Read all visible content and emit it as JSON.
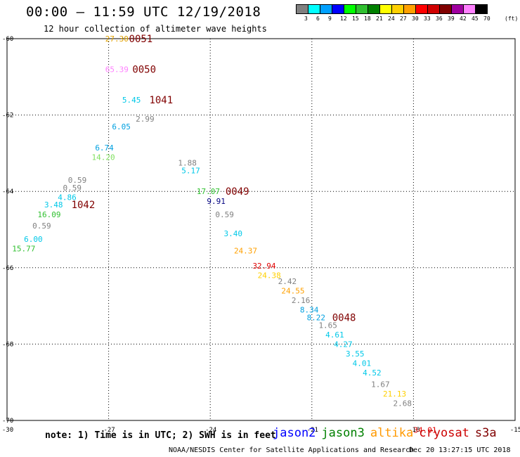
{
  "header": {
    "title": "00:00 – 11:59 UTC 12/19/2018",
    "subtitle": "12 hour collection of altimeter wave heights"
  },
  "scale": {
    "labels": [
      "3",
      "6",
      "9",
      "12",
      "15",
      "18",
      "21",
      "24",
      "27",
      "30",
      "33",
      "36",
      "39",
      "42",
      "45",
      "70"
    ],
    "unit": "(ft)",
    "colors": [
      "#808080",
      "#00ffff",
      "#00a0ff",
      "#0000ff",
      "#00ff00",
      "#30c030",
      "#008000",
      "#ffff00",
      "#ffd000",
      "#ffa000",
      "#ff0000",
      "#d00000",
      "#800000",
      "#a000a0",
      "#ff80ff",
      "#000000"
    ]
  },
  "footer": {
    "note": "note: 1) Time is in UTC; 2) SWH is in feet",
    "credit": "NOAA/NESDIS Center for Satellite Applications and Research",
    "timestamp": "Dec 20 13:27:15 UTC 2018"
  },
  "satellites": [
    {
      "name": "jason2",
      "color": "#0000ff"
    },
    {
      "name": "jason3",
      "color": "#008000"
    },
    {
      "name": "altika",
      "color": "#ff9900"
    },
    {
      "name": "cryosat",
      "color": "#cc0000"
    },
    {
      "name": "s3a",
      "color": "#800000"
    }
  ],
  "chart_data": {
    "type": "scatter",
    "xlabel": "",
    "ylabel": "",
    "xlim": [
      -30,
      -15
    ],
    "ylim": [
      -70,
      -60
    ],
    "x_ticks": [
      "-30",
      "-27",
      "-24",
      "-21",
      "-18",
      "-15"
    ],
    "y_ticks": [
      "-60",
      "-62",
      "-64",
      "-66",
      "-68",
      "-70"
    ],
    "grid": true,
    "series": [
      {
        "values": [
          {
            "x": -27.1,
            "y": -60.0,
            "label": "27.30",
            "color": "#e0a000"
          },
          {
            "x": -27.1,
            "y": -60.8,
            "label": "65.39",
            "color": "#ff80ff"
          },
          {
            "x": -26.6,
            "y": -61.6,
            "label": "5.45",
            "color": "#00c8e8"
          },
          {
            "x": -26.2,
            "y": -62.1,
            "label": "2.99",
            "color": "#808080"
          },
          {
            "x": -26.9,
            "y": -62.3,
            "label": "6.05",
            "color": "#00a0e0"
          },
          {
            "x": -27.4,
            "y": -62.85,
            "label": "6.74",
            "color": "#00a0e0"
          },
          {
            "x": -27.5,
            "y": -63.1,
            "label": "14.20",
            "color": "#80e060"
          },
          {
            "x": -28.2,
            "y": -63.7,
            "label": "0.59",
            "color": "#808080"
          },
          {
            "x": -28.35,
            "y": -63.9,
            "label": "0.59",
            "color": "#808080"
          },
          {
            "x": -28.5,
            "y": -64.15,
            "label": "4.86",
            "color": "#00c8e8"
          },
          {
            "x": -28.9,
            "y": -64.35,
            "label": "3.48",
            "color": "#00c8e8"
          },
          {
            "x": -29.1,
            "y": -64.6,
            "label": "16.09",
            "color": "#30c030"
          },
          {
            "x": -29.25,
            "y": -64.9,
            "label": "0.59",
            "color": "#808080"
          },
          {
            "x": -29.5,
            "y": -65.25,
            "label": "6.00",
            "color": "#00c8e8"
          },
          {
            "x": -29.85,
            "y": -65.5,
            "label": "15.77",
            "color": "#30c030"
          },
          {
            "x": -24.95,
            "y": -63.25,
            "label": "1.88",
            "color": "#808080"
          },
          {
            "x": -24.85,
            "y": -63.45,
            "label": "5.17",
            "color": "#00c8e8"
          },
          {
            "x": -24.4,
            "y": -64.0,
            "label": "17.07",
            "color": "#30c030"
          },
          {
            "x": -24.1,
            "y": -64.25,
            "label": "9.91",
            "color": "#000080"
          },
          {
            "x": -23.85,
            "y": -64.6,
            "label": "0.59",
            "color": "#808080"
          },
          {
            "x": -23.6,
            "y": -65.1,
            "label": "3.40",
            "color": "#00c8e8"
          },
          {
            "x": -23.3,
            "y": -65.55,
            "label": "24.37",
            "color": "#ffa000"
          },
          {
            "x": -22.75,
            "y": -65.95,
            "label": "32.94",
            "color": "#e00000"
          },
          {
            "x": -22.6,
            "y": -66.2,
            "label": "24.38",
            "color": "#ffd000"
          },
          {
            "x": -22.0,
            "y": -66.35,
            "label": "2.42",
            "color": "#808080"
          },
          {
            "x": -21.9,
            "y": -66.6,
            "label": "24.55",
            "color": "#ffa000"
          },
          {
            "x": -21.6,
            "y": -66.85,
            "label": "2.16",
            "color": "#808080"
          },
          {
            "x": -21.35,
            "y": -67.1,
            "label": "8.34",
            "color": "#00a0e0"
          },
          {
            "x": -21.15,
            "y": -67.3,
            "label": "8.22",
            "color": "#00a0e0"
          },
          {
            "x": -20.8,
            "y": -67.5,
            "label": "1.65",
            "color": "#808080"
          },
          {
            "x": -20.6,
            "y": -67.75,
            "label": "4.61",
            "color": "#00c8e8"
          },
          {
            "x": -20.35,
            "y": -68.0,
            "label": "4.27",
            "color": "#00c8e8"
          },
          {
            "x": -20.0,
            "y": -68.25,
            "label": "3.55",
            "color": "#00c8e8"
          },
          {
            "x": -19.8,
            "y": -68.5,
            "label": "4.01",
            "color": "#00c8e8"
          },
          {
            "x": -19.5,
            "y": -68.75,
            "label": "4.52",
            "color": "#00c8e8"
          },
          {
            "x": -19.25,
            "y": -69.05,
            "label": "1.67",
            "color": "#808080"
          },
          {
            "x": -18.9,
            "y": -69.3,
            "label": "21.13",
            "color": "#ffd000"
          },
          {
            "x": -18.6,
            "y": -69.55,
            "label": "2.68",
            "color": "#808080"
          },
          {
            "x": -18.0,
            "y": -70.25,
            "label": "34.01",
            "color": "#e00000"
          }
        ]
      }
    ],
    "annotations": [
      {
        "x": -26.4,
        "y": -60.0,
        "label": "0051",
        "color": "#800000"
      },
      {
        "x": -26.3,
        "y": -60.8,
        "label": "0050",
        "color": "#800000"
      },
      {
        "x": -25.8,
        "y": -61.6,
        "label": "1041",
        "color": "#800000"
      },
      {
        "x": -28.1,
        "y": -64.35,
        "label": "1042",
        "color": "#800000"
      },
      {
        "x": -23.55,
        "y": -64.0,
        "label": "0049",
        "color": "#800000"
      },
      {
        "x": -20.4,
        "y": -67.3,
        "label": "0048",
        "color": "#800000"
      }
    ]
  }
}
